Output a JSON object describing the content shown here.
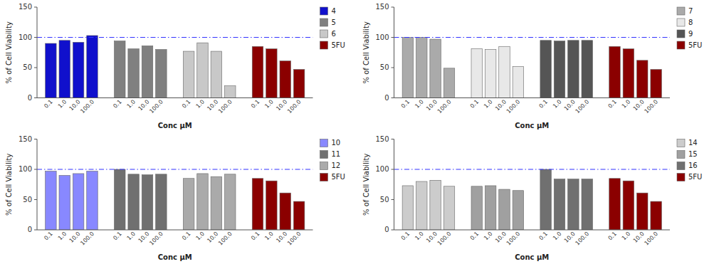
{
  "chart_data": [
    {
      "type": "bar",
      "categories": [
        "0.1",
        "1.0",
        "10.0",
        "100.0"
      ],
      "series": [
        {
          "name": "4",
          "color": "#1010CC",
          "values": [
            90,
            95,
            92,
            103
          ]
        },
        {
          "name": "5",
          "color": "#808080",
          "values": [
            94,
            81,
            86,
            80
          ]
        },
        {
          "name": "6",
          "color": "#C8C8C8",
          "values": [
            77,
            91,
            77,
            20
          ]
        },
        {
          "name": "5FU",
          "color": "#8B0000",
          "values": [
            85,
            81,
            61,
            47
          ]
        }
      ],
      "x_label": "Conc μM",
      "y_label": "% of Cell Viability",
      "ylim": [
        0,
        150
      ],
      "yticks": [
        0,
        50,
        100,
        150
      ],
      "reference_line": {
        "value": 100,
        "color": "#3333FF"
      },
      "legend": "right",
      "grid": false
    },
    {
      "type": "bar",
      "categories": [
        "0.1",
        "1.0",
        "10.0",
        "100.0"
      ],
      "series": [
        {
          "name": "7",
          "color": "#AAAAAA",
          "values": [
            100,
            100,
            97,
            49
          ]
        },
        {
          "name": "8",
          "color": "#E8E8E8",
          "values": [
            81,
            80,
            85,
            52
          ]
        },
        {
          "name": "9",
          "color": "#555555",
          "values": [
            95,
            94,
            95,
            95
          ]
        },
        {
          "name": "5FU",
          "color": "#8B0000",
          "values": [
            85,
            81,
            62,
            47
          ]
        }
      ],
      "x_label": "Conc μM",
      "y_label": "% of Cell Viability",
      "ylim": [
        0,
        150
      ],
      "yticks": [
        0,
        50,
        100,
        150
      ],
      "reference_line": {
        "value": 100,
        "color": "#3333FF"
      },
      "legend": "right",
      "grid": false
    },
    {
      "type": "bar",
      "categories": [
        "0.1",
        "1.0",
        "10.0",
        "100.0"
      ],
      "series": [
        {
          "name": "10",
          "color": "#8888FF",
          "values": [
            97,
            90,
            93,
            97
          ]
        },
        {
          "name": "11",
          "color": "#707070",
          "values": [
            100,
            92,
            91,
            92
          ]
        },
        {
          "name": "12",
          "color": "#AAAAAA",
          "values": [
            85,
            93,
            88,
            92
          ]
        },
        {
          "name": "5FU",
          "color": "#8B0000",
          "values": [
            85,
            81,
            61,
            47
          ]
        }
      ],
      "x_label": "Conc μM",
      "y_label": "% of Cell Viability",
      "ylim": [
        0,
        150
      ],
      "yticks": [
        0,
        50,
        100,
        150
      ],
      "reference_line": {
        "value": 100,
        "color": "#3333FF"
      },
      "legend": "right",
      "grid": false
    },
    {
      "type": "bar",
      "categories": [
        "0.1",
        "1.0",
        "10.0",
        "100.0"
      ],
      "series": [
        {
          "name": "14",
          "color": "#CCCCCC",
          "values": [
            73,
            80,
            82,
            72
          ]
        },
        {
          "name": "15",
          "color": "#A0A0A0",
          "values": [
            72,
            73,
            67,
            65
          ]
        },
        {
          "name": "16",
          "color": "#707070",
          "values": [
            100,
            84,
            84,
            84
          ]
        },
        {
          "name": "5FU",
          "color": "#8B0000",
          "values": [
            85,
            81,
            61,
            47
          ]
        }
      ],
      "x_label": "Conc μM",
      "y_label": "% of Cell Viability",
      "ylim": [
        0,
        150
      ],
      "yticks": [
        0,
        50,
        100,
        150
      ],
      "reference_line": {
        "value": 100,
        "color": "#3333FF"
      },
      "legend": "right",
      "grid": false
    }
  ]
}
